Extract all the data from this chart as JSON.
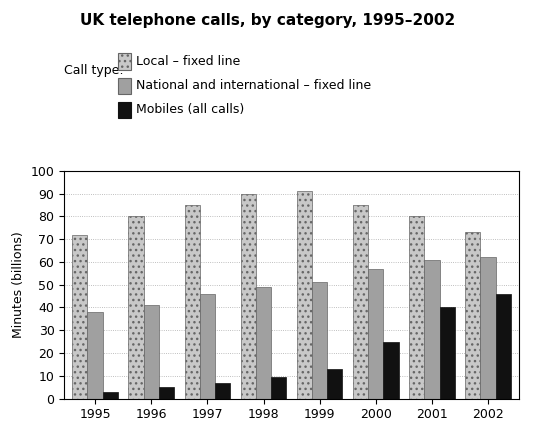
{
  "title": "UK telephone calls, by category, 1995–2002",
  "ylabel": "Minutes (billions)",
  "years": [
    1995,
    1996,
    1997,
    1998,
    1999,
    2000,
    2001,
    2002
  ],
  "local_fixed": [
    72,
    80,
    85,
    90,
    91,
    85,
    80,
    73
  ],
  "national_fixed": [
    38,
    41,
    46,
    49,
    51,
    57,
    61,
    62
  ],
  "mobiles": [
    3,
    5,
    7,
    9.5,
    13,
    25,
    40,
    46
  ],
  "ylim": [
    0,
    100
  ],
  "yticks": [
    0,
    10,
    20,
    30,
    40,
    50,
    60,
    70,
    80,
    90,
    100
  ],
  "legend_labels": [
    "Local – fixed line",
    "National and international – fixed line",
    "Mobiles (all calls)"
  ],
  "legend_title": "Call type:",
  "color_local_face": "#c8c8c8",
  "color_national_face": "#a0a0a0",
  "color_mobiles": "#111111",
  "bar_width": 0.27,
  "figsize": [
    5.35,
    4.38
  ],
  "dpi": 100
}
